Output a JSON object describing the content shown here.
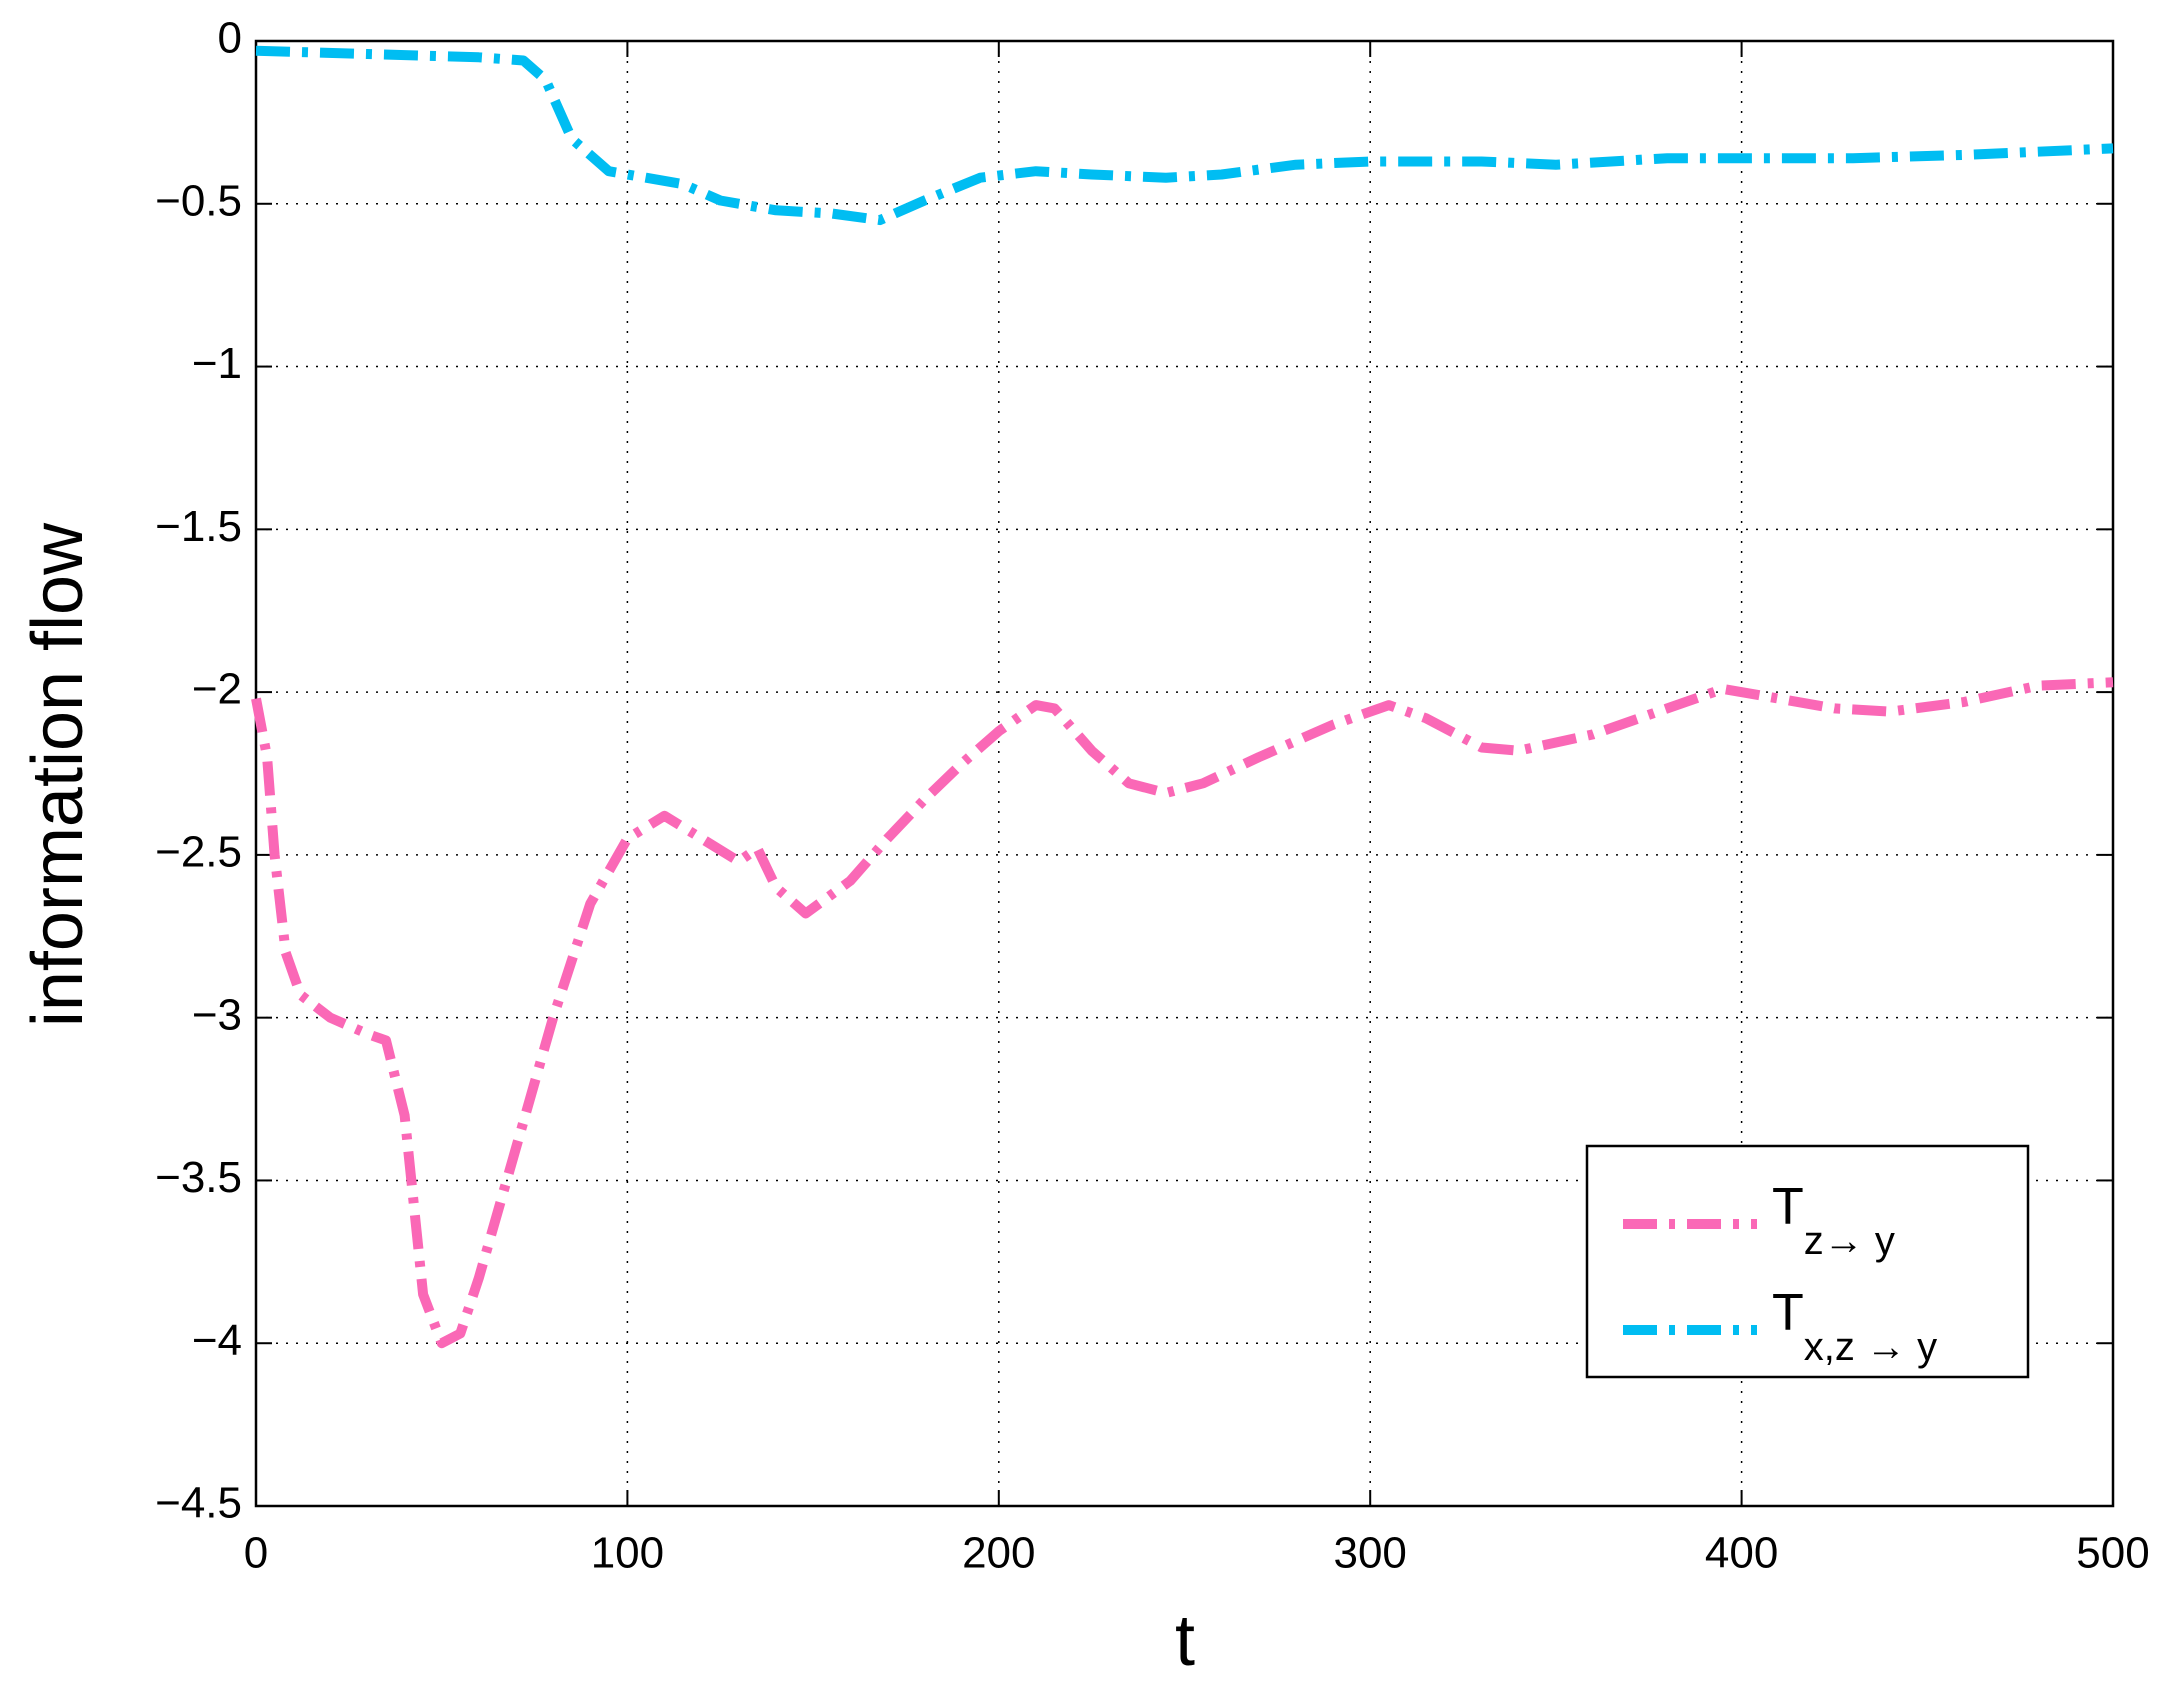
{
  "chart_data": {
    "type": "line",
    "xlabel": "t",
    "ylabel": "information flow",
    "xlim": [
      0,
      500
    ],
    "ylim": [
      -4.5,
      0
    ],
    "xticks": [
      0,
      100,
      200,
      300,
      400,
      500
    ],
    "yticks": [
      0,
      {
        "value": -0.5,
        "label": "−0.5"
      },
      {
        "value": -1,
        "label": "−1"
      },
      {
        "value": -1.5,
        "label": "−1.5"
      },
      {
        "value": -2,
        "label": "−2"
      },
      {
        "value": -2.5,
        "label": "−2.5"
      },
      {
        "value": -3,
        "label": "−3"
      },
      {
        "value": -3.5,
        "label": "−3.5"
      },
      {
        "value": -4,
        "label": "−4"
      },
      {
        "value": -4.5,
        "label": "−4.5"
      }
    ],
    "grid": true,
    "legend": "lower right",
    "series": [
      {
        "name": "T",
        "subscript": "z→ y",
        "color": "#fa68b6",
        "x": [
          0,
          3,
          5,
          8,
          12,
          20,
          30,
          35,
          40,
          45,
          50,
          55,
          60,
          70,
          80,
          90,
          100,
          110,
          120,
          130,
          135,
          140,
          148,
          160,
          170,
          180,
          190,
          200,
          210,
          215,
          225,
          235,
          245,
          255,
          270,
          290,
          305,
          315,
          330,
          340,
          360,
          380,
          395,
          410,
          425,
          440,
          460,
          480,
          500
        ],
        "values": [
          -2.02,
          -2.2,
          -2.5,
          -2.8,
          -2.93,
          -3.0,
          -3.05,
          -3.07,
          -3.3,
          -3.85,
          -4.0,
          -3.97,
          -3.8,
          -3.4,
          -3.0,
          -2.65,
          -2.45,
          -2.38,
          -2.45,
          -2.52,
          -2.48,
          -2.6,
          -2.68,
          -2.58,
          -2.45,
          -2.33,
          -2.22,
          -2.12,
          -2.04,
          -2.05,
          -2.18,
          -2.28,
          -2.31,
          -2.28,
          -2.2,
          -2.1,
          -2.04,
          -2.08,
          -2.17,
          -2.18,
          -2.13,
          -2.05,
          -1.99,
          -2.02,
          -2.05,
          -2.06,
          -2.03,
          -1.98,
          -1.97
        ]
      },
      {
        "name": "T",
        "subscript": "x,z → y",
        "color": "#00bdf2",
        "x": [
          0,
          30,
          60,
          72,
          78,
          85,
          95,
          105,
          115,
          125,
          140,
          155,
          168,
          180,
          195,
          210,
          225,
          245,
          260,
          280,
          300,
          330,
          350,
          380,
          400,
          430,
          460,
          500
        ],
        "values": [
          -0.03,
          -0.04,
          -0.05,
          -0.06,
          -0.12,
          -0.3,
          -0.4,
          -0.42,
          -0.44,
          -0.49,
          -0.52,
          -0.53,
          -0.55,
          -0.49,
          -0.42,
          -0.4,
          -0.41,
          -0.42,
          -0.41,
          -0.38,
          -0.37,
          -0.37,
          -0.38,
          -0.36,
          -0.36,
          -0.36,
          -0.35,
          -0.33
        ]
      }
    ]
  }
}
